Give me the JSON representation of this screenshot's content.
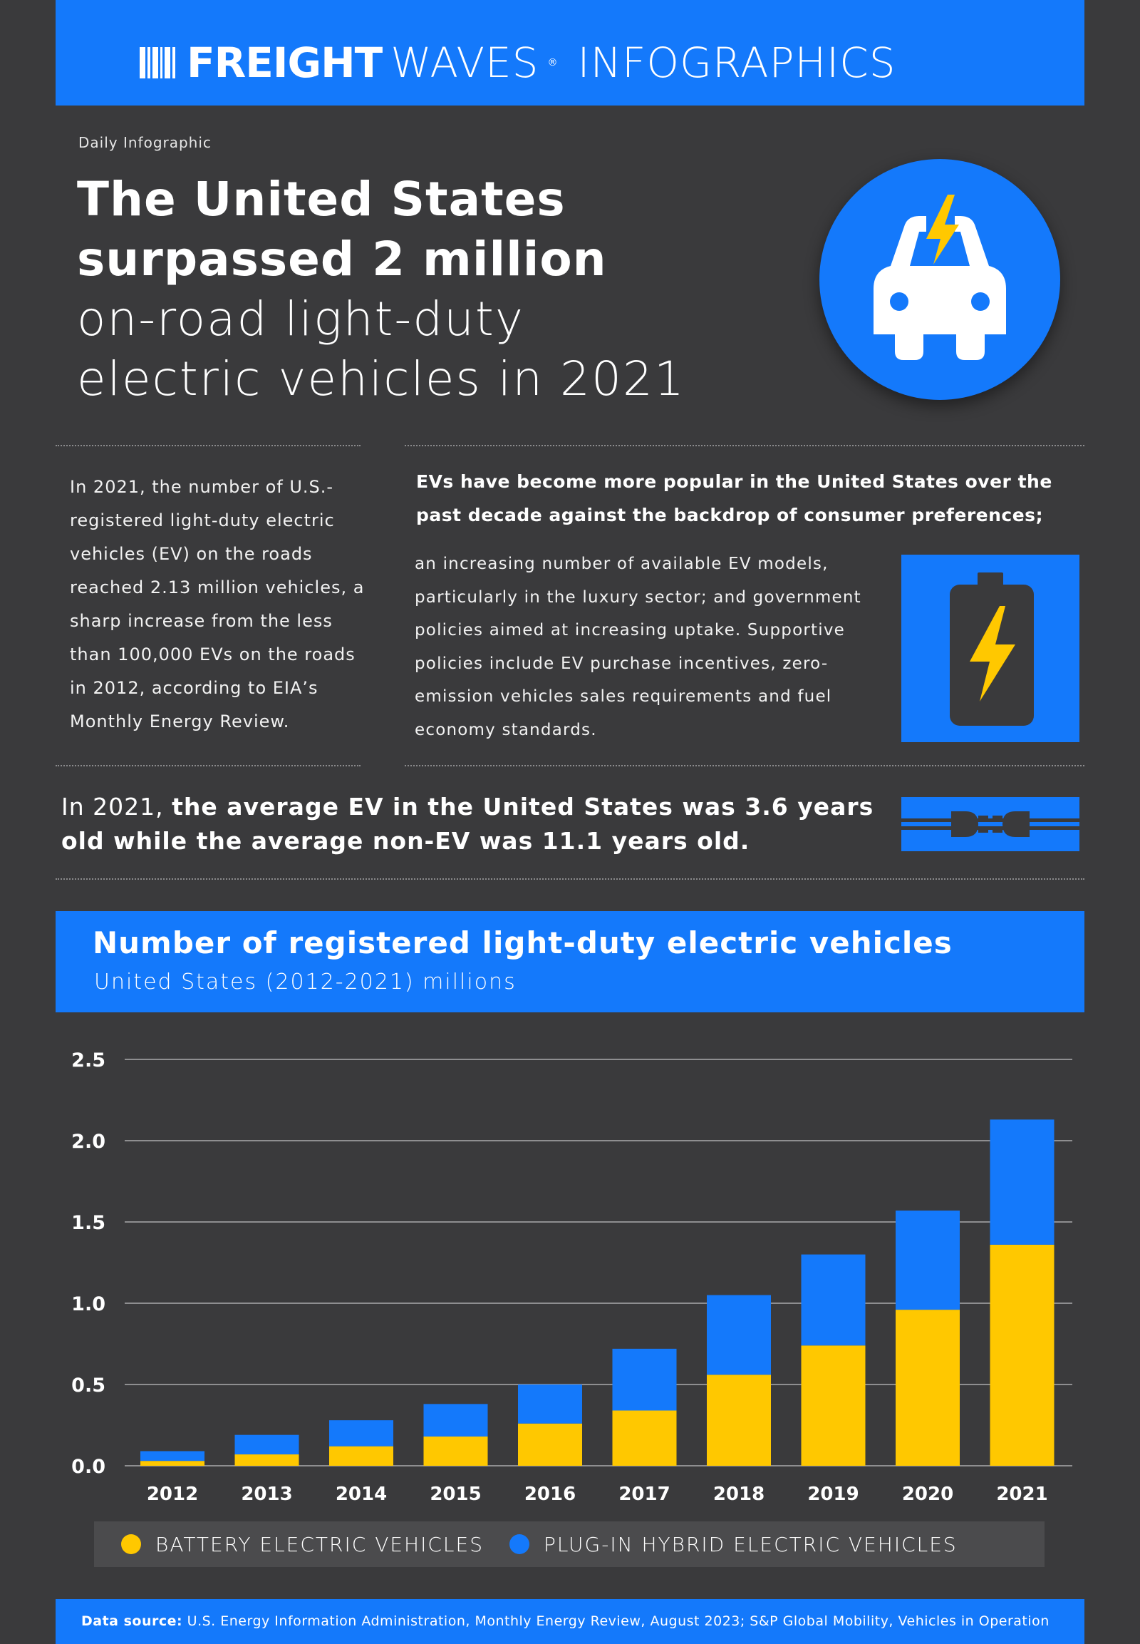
{
  "header": {
    "brand_bold": "FREIGHT",
    "brand_light": "WAVES",
    "brand_reg": "®",
    "brand_suffix": "INFOGRAPHICS"
  },
  "intro": {
    "eyebrow": "Daily Infographic",
    "title_bold_1": "The United States",
    "title_bold_2": "surpassed 2 million",
    "title_light_1": "on-road light-duty",
    "title_light_2": "electric vehicles in 2021"
  },
  "left_paragraph": "In 2021, the number of U.S.-registered light-duty electric vehicles (EV) on the roads reached 2.13 million vehicles, a sharp increase from the less than 100,000 EVs on the roads in 2012, according to EIA’s Monthly Energy Review.",
  "right_heading": "EVs have become more popular in the United States over the past decade against the backdrop of consumer preferences;",
  "right_paragraph": "an increasing number of available EV models, particularly in the luxury sector; and government policies aimed at increasing uptake. Supportive policies include EV purchase incentives, zero-emission vehicles sales requirements and fuel economy standards.",
  "age_stat": {
    "prefix": "In 2021, ",
    "bold": "the average EV in the United States was 3.6 years old while the average non-EV was 11.1 years old."
  },
  "chart_header": {
    "title": "Number of registered light-duty electric vehicles",
    "subtitle": "United States (2012-2021) millions"
  },
  "chart_data": {
    "type": "bar",
    "stacked": true,
    "categories": [
      "2012",
      "2013",
      "2014",
      "2015",
      "2016",
      "2017",
      "2018",
      "2019",
      "2020",
      "2021"
    ],
    "series": [
      {
        "name": "BATTERY ELECTRIC VEHICLES",
        "color": "#ffc800",
        "values": [
          0.03,
          0.07,
          0.12,
          0.18,
          0.26,
          0.34,
          0.56,
          0.74,
          0.96,
          1.36
        ]
      },
      {
        "name": "PLUG-IN HYBRID ELECTRIC VEHICLES",
        "color": "#1479fb",
        "values": [
          0.06,
          0.12,
          0.16,
          0.2,
          0.24,
          0.38,
          0.49,
          0.56,
          0.61,
          0.77
        ]
      }
    ],
    "ylim": [
      0,
      2.5
    ],
    "yticks": [
      "0.0",
      "0.5",
      "1.0",
      "1.5",
      "2.0",
      "2.5"
    ],
    "grid": true,
    "legend_position": "bottom"
  },
  "legend": {
    "bev_label": "BATTERY ELECTRIC VEHICLES",
    "phev_label": "PLUG-IN HYBRID ELECTRIC VEHICLES"
  },
  "source": {
    "label": "Data source:",
    "text": " U.S. Energy Information Administration, Monthly Energy Review, August 2023; S&P Global Mobility, Vehicles in Operation"
  },
  "colors": {
    "background": "#3a3a3c",
    "accent_blue": "#1479fb",
    "accent_yellow": "#ffc800"
  },
  "icons": {
    "logo": "barcode-logo-icon",
    "car": "electric-car-icon",
    "battery": "battery-charging-icon",
    "plug": "plug-icon"
  }
}
